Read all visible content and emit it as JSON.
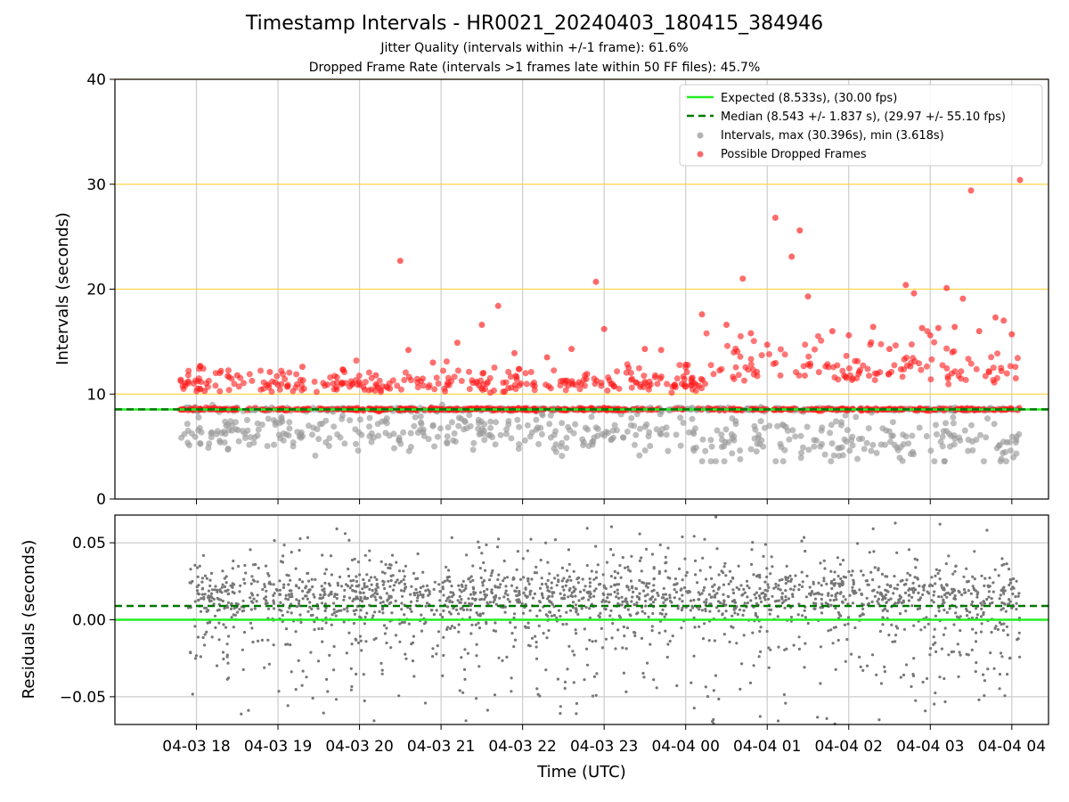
{
  "chart_data": [
    {
      "type": "scatter",
      "title": "Timestamp Intervals - HR0021_20240403_180415_384946",
      "subtitle_lines": [
        "Jitter Quality (intervals within +/-1 frame): 61.6%",
        "Dropped Frame Rate (intervals >1 frames late within 50 FF files): 45.7%"
      ],
      "ylabel": "Intervals (seconds)",
      "ylim": [
        0,
        40
      ],
      "yticks": [
        0,
        10,
        20,
        30,
        40
      ],
      "horizontal_lines": [
        10,
        20,
        30,
        40
      ],
      "horizontal_line_color": "#ffd54a",
      "grid": "vertical",
      "legend_position": "top-right",
      "legend": [
        "Expected (8.533s), (30.00 fps)",
        "Median (8.543 +/- 1.837 s), (29.97 +/- 55.10 fps)",
        "Intervals, max (30.396s), min (3.618s)",
        "Possible Dropped Frames"
      ],
      "expected_interval": 8.533,
      "median_interval": 8.543,
      "colors": {
        "expected": "#22ee22",
        "median": "#007700",
        "intervals": "#999999",
        "dropped": "#ff1a1a"
      },
      "time_range_hours": [
        17.8,
        28.1
      ],
      "series": [
        {
          "name": "Possible Dropped Frames",
          "points": [
            [
              17.9,
              11.2
            ],
            [
              18.1,
              10.3
            ],
            [
              18.3,
              12.2
            ],
            [
              18.5,
              11.8
            ],
            [
              18.9,
              12.1
            ],
            [
              19.3,
              12.6
            ],
            [
              19.8,
              12.3
            ],
            [
              20.2,
              11.8
            ],
            [
              20.5,
              22.7
            ],
            [
              20.6,
              14.2
            ],
            [
              20.9,
              13.0
            ],
            [
              21.2,
              14.9
            ],
            [
              21.5,
              16.6
            ],
            [
              21.7,
              18.4
            ],
            [
              21.9,
              13.9
            ],
            [
              22.3,
              13.5
            ],
            [
              22.6,
              14.3
            ],
            [
              22.9,
              20.7
            ],
            [
              23.0,
              16.2
            ],
            [
              23.3,
              12.5
            ],
            [
              23.5,
              14.3
            ],
            [
              23.7,
              14.2
            ],
            [
              24.0,
              12.8
            ],
            [
              24.2,
              17.6
            ],
            [
              24.5,
              16.6
            ],
            [
              24.7,
              21.0
            ],
            [
              24.8,
              15.8
            ],
            [
              25.0,
              14.7
            ],
            [
              25.1,
              26.8
            ],
            [
              25.3,
              23.1
            ],
            [
              25.4,
              25.6
            ],
            [
              25.5,
              19.3
            ],
            [
              25.8,
              16.0
            ],
            [
              26.0,
              15.6
            ],
            [
              26.3,
              16.4
            ],
            [
              26.5,
              14.3
            ],
            [
              26.7,
              20.4
            ],
            [
              26.8,
              19.6
            ],
            [
              26.9,
              16.3
            ],
            [
              27.0,
              15.6
            ],
            [
              27.1,
              16.3
            ],
            [
              27.2,
              20.1
            ],
            [
              27.3,
              16.4
            ],
            [
              27.4,
              19.1
            ],
            [
              27.5,
              29.4
            ],
            [
              27.6,
              16.0
            ],
            [
              27.8,
              17.3
            ],
            [
              27.9,
              17.0
            ],
            [
              28.0,
              15.7
            ],
            [
              28.1,
              30.4
            ]
          ]
        }
      ]
    },
    {
      "type": "scatter",
      "xlabel": "Time (UTC)",
      "ylabel": "Residuals (seconds)",
      "ylim": [
        -0.068,
        0.068
      ],
      "yticks": [
        0.05,
        0.0,
        -0.05
      ],
      "ytick_labels": [
        "0.05",
        "0.00",
        "−0.05"
      ],
      "xticks": [
        18,
        19,
        20,
        21,
        22,
        23,
        24,
        25,
        26,
        27,
        28
      ],
      "xtick_labels": [
        "04-03 18",
        "04-03 19",
        "04-03 20",
        "04-03 21",
        "04-03 22",
        "04-03 23",
        "04-04 00",
        "04-04 01",
        "04-04 02",
        "04-04 03",
        "04-04 04"
      ],
      "grid": "both",
      "expected_residual": 0.0,
      "median_residual": 0.009,
      "colors": {
        "expected": "#22ee22",
        "median": "#007700",
        "points": "#777777"
      }
    }
  ]
}
